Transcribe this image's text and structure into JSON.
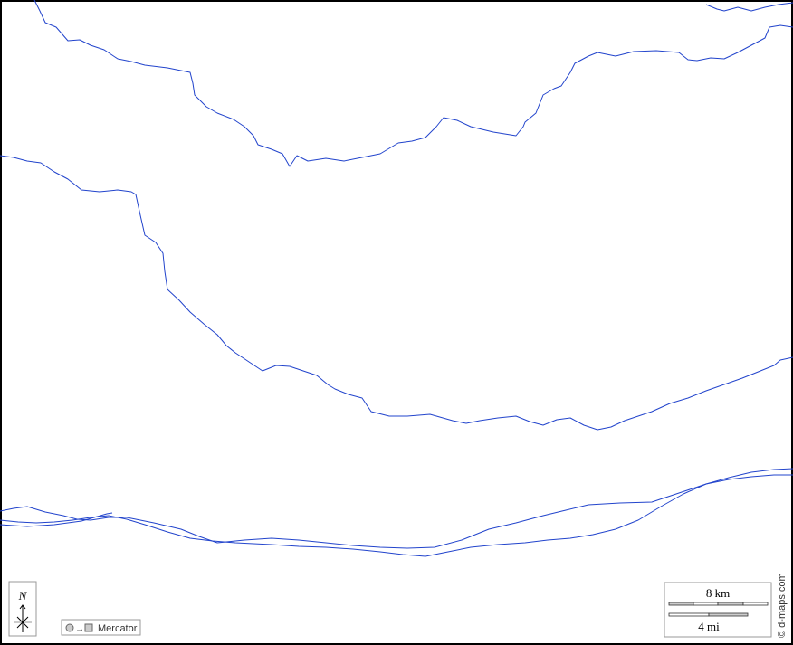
{
  "map": {
    "colors": {
      "river": "#2244cc",
      "frame": "#000000",
      "background": "#ffffff",
      "legend_fill": "#cccccc"
    },
    "compass": {
      "label": "N"
    },
    "projection": {
      "label": "Mercator",
      "icon": "circle-to-square-icon"
    },
    "scale": {
      "km_label": "8 km",
      "mi_label": "4 mi"
    },
    "credit": "© d-maps.com"
  }
}
